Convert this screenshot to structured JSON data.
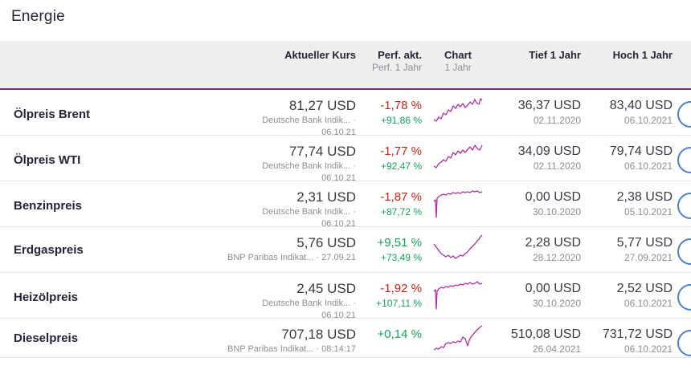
{
  "page": {
    "title": "Energie"
  },
  "colors": {
    "accent_purple": "#8a2082",
    "spark_line": "#b32da2",
    "positive": "#14a357",
    "negative": "#cb2417",
    "action_blue": "#4a7edb",
    "header_bg": "#efedee",
    "text_dark": "#262438",
    "text_gray": "#8d8d95"
  },
  "table": {
    "headers": {
      "kurs": "Aktueller Kurs",
      "perf_main": "Perf. akt.",
      "perf_sub": "Perf. 1 Jahr",
      "chart_main": "Chart",
      "chart_sub": "1 Jahr",
      "tief": "Tief 1 Jahr",
      "hoch": "Hoch 1 Jahr"
    },
    "rows": [
      {
        "name": "Ölpreis Brent",
        "kurs": "81,27 USD",
        "kurs_sub": "Deutsche Bank Indik... · 06.10.21",
        "perf": "-1,78 %",
        "perf_dir": "down",
        "perf_sub": "+91,86 %",
        "tief": "36,37 USD",
        "tief_date": "02.11.2020",
        "hoch": "83,40 USD",
        "hoch_date": "06.10.2021",
        "spark": [
          [
            0,
            28
          ],
          [
            3,
            30
          ],
          [
            6,
            25
          ],
          [
            9,
            27
          ],
          [
            12,
            20
          ],
          [
            15,
            22
          ],
          [
            18,
            16
          ],
          [
            21,
            18
          ],
          [
            24,
            11
          ],
          [
            27,
            14
          ],
          [
            30,
            9
          ],
          [
            33,
            12
          ],
          [
            36,
            8
          ],
          [
            39,
            13
          ],
          [
            42,
            10
          ],
          [
            45,
            6
          ],
          [
            48,
            9
          ],
          [
            51,
            3
          ],
          [
            53,
            7
          ],
          [
            56,
            9
          ],
          [
            58,
            2
          ],
          [
            60,
            4
          ]
        ]
      },
      {
        "name": "Ölpreis WTI",
        "kurs": "77,74 USD",
        "kurs_sub": "Deutsche Bank Indik... · 06.10.21",
        "perf": "-1,77 %",
        "perf_dir": "down",
        "perf_sub": "+92,47 %",
        "tief": "34,09 USD",
        "tief_date": "02.11.2020",
        "hoch": "79,74 USD",
        "hoch_date": "06.10.2021",
        "spark": [
          [
            0,
            29
          ],
          [
            3,
            31
          ],
          [
            6,
            26
          ],
          [
            9,
            24
          ],
          [
            12,
            21
          ],
          [
            15,
            23
          ],
          [
            18,
            17
          ],
          [
            21,
            19
          ],
          [
            24,
            12
          ],
          [
            27,
            15
          ],
          [
            30,
            10
          ],
          [
            33,
            13
          ],
          [
            36,
            9
          ],
          [
            39,
            12
          ],
          [
            42,
            8
          ],
          [
            45,
            5
          ],
          [
            48,
            9
          ],
          [
            51,
            3
          ],
          [
            54,
            7
          ],
          [
            57,
            9
          ],
          [
            60,
            3
          ]
        ]
      },
      {
        "name": "Benzinpreis",
        "kurs": "2,31 USD",
        "kurs_sub": "Deutsche Bank Indik... · 06.10.21",
        "perf": "-1,87 %",
        "perf_dir": "down",
        "perf_sub": "+87,72 %",
        "tief": "0,00 USD",
        "tief_date": "30.10.2020",
        "hoch": "2,38 USD",
        "hoch_date": "05.10.2021",
        "spark": [
          [
            0,
            16
          ],
          [
            2,
            14
          ],
          [
            3,
            36
          ],
          [
            4,
            12
          ],
          [
            6,
            10
          ],
          [
            9,
            8
          ],
          [
            12,
            7
          ],
          [
            15,
            8
          ],
          [
            18,
            6
          ],
          [
            21,
            7
          ],
          [
            24,
            5
          ],
          [
            27,
            6
          ],
          [
            30,
            5
          ],
          [
            33,
            6
          ],
          [
            36,
            4
          ],
          [
            39,
            5
          ],
          [
            42,
            4
          ],
          [
            45,
            5
          ],
          [
            48,
            3
          ],
          [
            51,
            4
          ],
          [
            54,
            3
          ],
          [
            57,
            5
          ],
          [
            60,
            4
          ]
        ]
      },
      {
        "name": "Erdgaspreis",
        "kurs": "5,76 USD",
        "kurs_sub": "BNP Paribas Indikat... · 27.09.21",
        "perf": "+9,51 %",
        "perf_dir": "up",
        "perf_sub": "+73,49 %",
        "tief": "2,28 USD",
        "tief_date": "28.12.2020",
        "hoch": "5,77 USD",
        "hoch_date": "27.09.2021",
        "spark": [
          [
            0,
            12
          ],
          [
            3,
            16
          ],
          [
            6,
            20
          ],
          [
            9,
            24
          ],
          [
            12,
            26
          ],
          [
            15,
            28
          ],
          [
            18,
            26
          ],
          [
            21,
            29
          ],
          [
            24,
            27
          ],
          [
            27,
            30
          ],
          [
            30,
            28
          ],
          [
            33,
            26
          ],
          [
            36,
            27
          ],
          [
            39,
            24
          ],
          [
            42,
            22
          ],
          [
            45,
            18
          ],
          [
            48,
            15
          ],
          [
            51,
            12
          ],
          [
            54,
            8
          ],
          [
            56,
            6
          ],
          [
            58,
            3
          ],
          [
            60,
            1
          ]
        ]
      },
      {
        "name": "Heizölpreis",
        "kurs": "2,45 USD",
        "kurs_sub": "Deutsche Bank Indik... · 06.10.21",
        "perf": "-1,92 %",
        "perf_dir": "down",
        "perf_sub": "+107,11 %",
        "tief": "0,00 USD",
        "tief_date": "30.10.2020",
        "hoch": "2,52 USD",
        "hoch_date": "06.10.2021",
        "spark": [
          [
            0,
            14
          ],
          [
            2,
            12
          ],
          [
            3,
            36
          ],
          [
            4,
            14
          ],
          [
            6,
            11
          ],
          [
            9,
            9
          ],
          [
            12,
            10
          ],
          [
            15,
            8
          ],
          [
            18,
            9
          ],
          [
            21,
            7
          ],
          [
            24,
            8
          ],
          [
            27,
            6
          ],
          [
            30,
            7
          ],
          [
            33,
            5
          ],
          [
            36,
            6
          ],
          [
            39,
            4
          ],
          [
            42,
            5
          ],
          [
            45,
            3
          ],
          [
            48,
            5
          ],
          [
            51,
            4
          ],
          [
            54,
            2
          ],
          [
            57,
            5
          ],
          [
            60,
            4
          ]
        ]
      },
      {
        "name": "Dieselpreis",
        "kurs": "707,18 USD",
        "kurs_sub": "BNP Paribas Indikat... · 08:14:17",
        "perf": "+0,14 %",
        "perf_dir": "up",
        "perf_sub": "",
        "tief": "510,08 USD",
        "tief_date": "26.04.2021",
        "hoch": "731,72 USD",
        "hoch_date": "06.10.2021",
        "spark": [
          [
            0,
            30
          ],
          [
            3,
            28
          ],
          [
            6,
            29
          ],
          [
            9,
            26
          ],
          [
            12,
            27
          ],
          [
            15,
            22
          ],
          [
            18,
            21
          ],
          [
            21,
            22
          ],
          [
            24,
            20
          ],
          [
            27,
            21
          ],
          [
            30,
            19
          ],
          [
            33,
            20
          ],
          [
            36,
            14
          ],
          [
            39,
            16
          ],
          [
            42,
            25
          ],
          [
            44,
            18
          ],
          [
            46,
            14
          ],
          [
            48,
            12
          ],
          [
            51,
            8
          ],
          [
            54,
            5
          ],
          [
            57,
            2
          ],
          [
            60,
            0
          ]
        ]
      }
    ]
  }
}
